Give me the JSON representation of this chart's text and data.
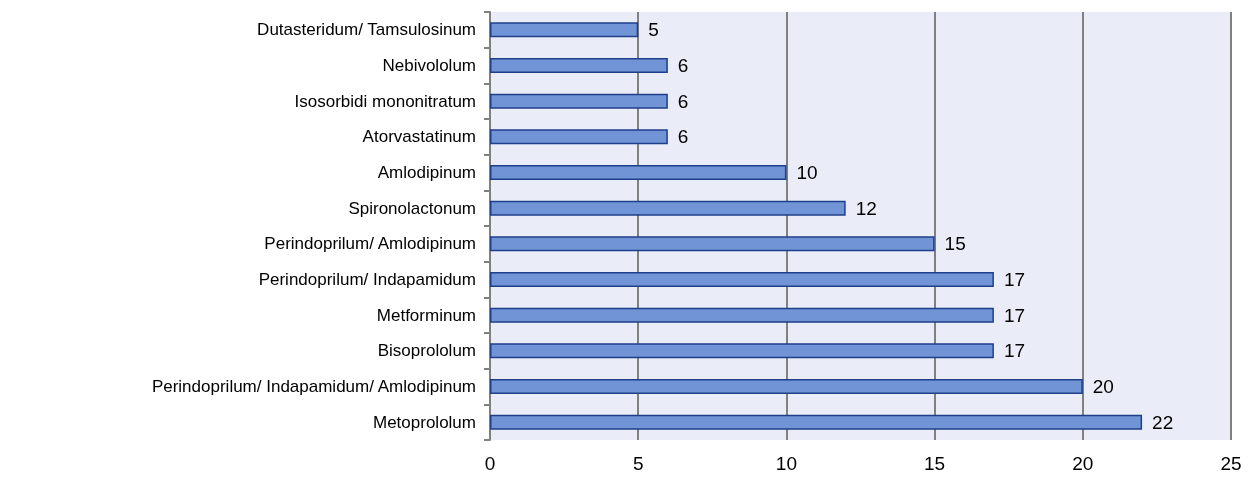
{
  "chart_data": {
    "type": "bar",
    "orientation": "horizontal",
    "categories": [
      "Dutasteridum/ Tamsulosinum",
      "Nebivololum",
      "Isosorbidi mononitratum",
      "Atorvastatinum",
      "Amlodipinum",
      "Spironolactonum",
      "Perindoprilum/ Amlodipinum",
      "Perindoprilum/ Indapamidum",
      "Metforminum",
      "Bisoprololum",
      "Perindoprilum/ Indapamidum/ Amlodipinum",
      "Metoprololum"
    ],
    "values": [
      5,
      6,
      6,
      6,
      10,
      12,
      15,
      17,
      17,
      17,
      20,
      22
    ],
    "color": "#7094d6",
    "xlim": [
      0,
      25
    ],
    "xticks": [
      0,
      5,
      10,
      15,
      20,
      25
    ],
    "grid": "x",
    "data_labels": true
  }
}
